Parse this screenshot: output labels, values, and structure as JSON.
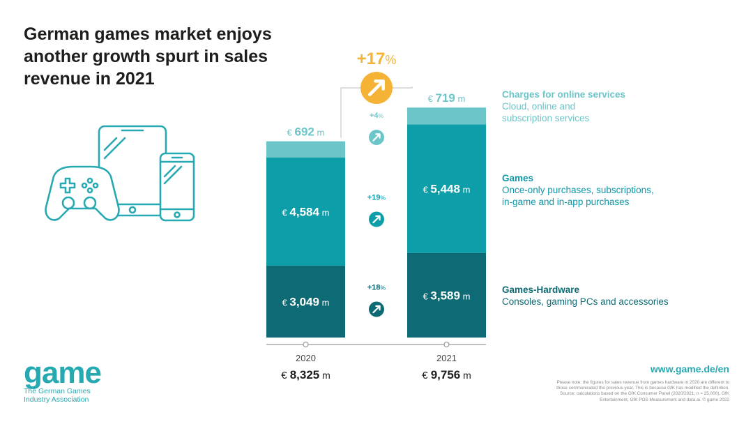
{
  "title": {
    "line1": "German games market enjoys",
    "line2": "another growth spurt in sales",
    "line3": "revenue in 2021"
  },
  "colors": {
    "online": "#6bc5c9",
    "games": "#0e9ea9",
    "hardware": "#0e6a74",
    "accent": "#f5b335",
    "teal_text": "#27a9b2"
  },
  "icons": [
    "gamepad-icon",
    "tablet-icon",
    "smartphone-icon",
    "arrow-up-right-icon"
  ],
  "chart_data": {
    "type": "bar",
    "stacked": true,
    "categories": [
      "2020",
      "2021"
    ],
    "series": [
      {
        "name": "Games-Hardware",
        "values": [
          3049,
          3589
        ],
        "labels": [
          "3,049",
          "3,589"
        ],
        "growth": "+18%"
      },
      {
        "name": "Games",
        "values": [
          4584,
          5448
        ],
        "labels": [
          "4,584",
          "5,448"
        ],
        "growth": "+19%"
      },
      {
        "name": "Charges for online services",
        "values": [
          692,
          719
        ],
        "labels": [
          "692",
          "719"
        ],
        "growth": "+4%"
      }
    ],
    "totals": [
      "8,325",
      "9,756"
    ],
    "total_growth": "+17%",
    "currency": "€",
    "unit": "m"
  },
  "legend": {
    "online": {
      "head": "Charges for online services",
      "line1": "Cloud, online and",
      "line2": "subscription services"
    },
    "games": {
      "head": "Games",
      "line1": "Once-only purchases, subscriptions,",
      "line2": "in-game and in-app purchases"
    },
    "hardware": {
      "head": "Games-Hardware",
      "line1": "Consoles, gaming PCs and accessories"
    }
  },
  "footer": {
    "logo_word": "game",
    "logo_tag_line1": "The German Games",
    "logo_tag_line2": "Industry Association",
    "url": "www.game.de/en",
    "note1": "Please note: the figures for sales revenue from games hardware in 2020 are different to",
    "note2": "those communicated the previous year. This is because GfK has modified the definition.",
    "note3": "Source: calculations based on the GfK Consumer Panel (2020/2021; n = 25,000), GfK",
    "note4": "Entertainment, GfK POS Measurement and data.ai. © game 2022"
  }
}
